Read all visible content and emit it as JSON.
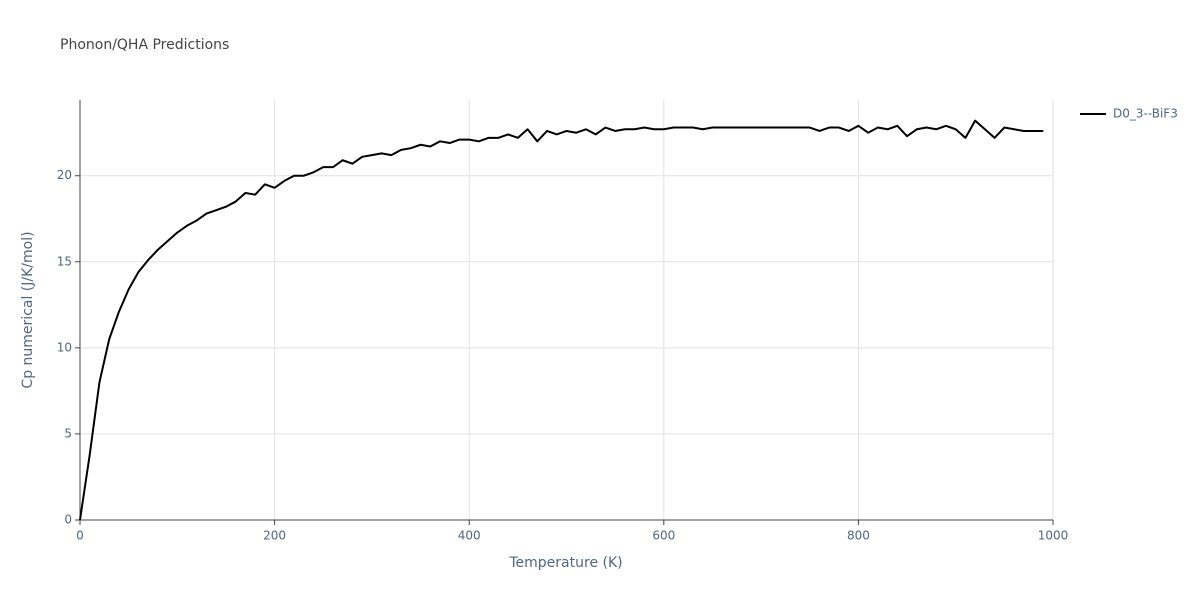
{
  "chart_data": {
    "type": "line",
    "title": "Phonon/QHA Predictions",
    "x_label": "Temperature (K)",
    "y_label": "Cp numerical (J/K/mol)",
    "x": [
      0,
      10,
      20,
      30,
      40,
      50,
      60,
      70,
      80,
      90,
      100,
      110,
      120,
      130,
      140,
      150,
      160,
      170,
      180,
      190,
      200,
      210,
      220,
      230,
      240,
      250,
      260,
      270,
      280,
      290,
      300,
      310,
      320,
      330,
      340,
      350,
      360,
      370,
      380,
      390,
      400,
      410,
      420,
      430,
      440,
      450,
      460,
      470,
      480,
      490,
      500,
      510,
      520,
      530,
      540,
      550,
      560,
      570,
      580,
      590,
      600,
      610,
      620,
      630,
      640,
      650,
      660,
      670,
      680,
      690,
      700,
      710,
      720,
      730,
      740,
      750,
      760,
      770,
      780,
      790,
      800,
      810,
      820,
      830,
      840,
      850,
      860,
      870,
      880,
      890,
      900,
      910,
      920,
      930,
      940,
      950,
      960,
      970,
      980,
      990
    ],
    "series": [
      {
        "name": "D0_3--BiF3",
        "color": "#000000",
        "values": [
          0,
          3.8,
          8.0,
          10.5,
          12.1,
          13.4,
          14.4,
          15.1,
          15.7,
          16.2,
          16.7,
          17.1,
          17.4,
          17.8,
          18.0,
          18.2,
          18.5,
          19.0,
          18.9,
          19.5,
          19.3,
          19.7,
          20.0,
          20.0,
          20.2,
          20.5,
          20.5,
          20.9,
          20.7,
          21.1,
          21.2,
          21.3,
          21.2,
          21.5,
          21.6,
          21.8,
          21.7,
          22.0,
          21.9,
          22.1,
          22.1,
          22.0,
          22.2,
          22.2,
          22.4,
          22.2,
          22.7,
          22.0,
          22.6,
          22.4,
          22.6,
          22.5,
          22.7,
          22.4,
          22.8,
          22.6,
          22.7,
          22.7,
          22.8,
          22.7,
          22.7,
          22.8,
          22.8,
          22.8,
          22.7,
          22.8,
          22.8,
          22.8,
          22.8,
          22.8,
          22.8,
          22.8,
          22.8,
          22.8,
          22.8,
          22.8,
          22.6,
          22.8,
          22.8,
          22.6,
          22.9,
          22.5,
          22.8,
          22.7,
          22.9,
          22.3,
          22.7,
          22.8,
          22.7,
          22.9,
          22.7,
          22.2,
          23.2,
          22.7,
          22.2,
          22.8,
          22.7,
          22.6,
          22.6,
          22.6
        ]
      }
    ],
    "xlim": [
      0,
      1000
    ],
    "ylim": [
      0,
      24.4
    ],
    "xticks": [
      0,
      200,
      400,
      600,
      800,
      1000
    ],
    "yticks": [
      0,
      5,
      10,
      15,
      20
    ],
    "grid": true,
    "legend": "top-right"
  }
}
